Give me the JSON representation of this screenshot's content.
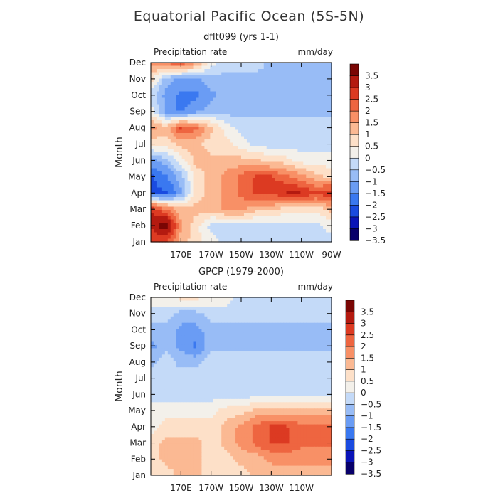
{
  "title": "Equatorial Pacific Ocean (5S-5N)",
  "colors": {
    "scale": [
      "#08006a",
      "#0a14b8",
      "#1a4be0",
      "#3a78f0",
      "#6a9cf4",
      "#98bcf6",
      "#c4daf8",
      "#f3f0ea",
      "#fde0c8",
      "#fbb993",
      "#f89066",
      "#ee6540",
      "#dc3a22",
      "#b41a10",
      "#7a0604"
    ]
  },
  "chart_data": [
    {
      "type": "heatmap",
      "title": "dflt099 (yrs 1-1)",
      "left_label": "Precipitation rate",
      "right_label": "mm/day",
      "ylabel": "Month",
      "y_categories": [
        "Jan",
        "Feb",
        "Mar",
        "Apr",
        "May",
        "Jun",
        "Jul",
        "Aug",
        "Sep",
        "Oct",
        "Nov",
        "Dec"
      ],
      "x_ticks": [
        "170E",
        "170W",
        "150W",
        "130W",
        "110W",
        "90W"
      ],
      "x_tick_lons": [
        170,
        190,
        210,
        230,
        250,
        270
      ],
      "xlim": [
        150,
        270
      ],
      "colorbar_labels": [
        "3.5",
        "3",
        "2.5",
        "2",
        "1.5",
        "1",
        "0.5",
        "0",
        "-0.5",
        "-1",
        "-1.5",
        "-2",
        "-2.5",
        "-3",
        "-3.5"
      ],
      "colorbar_range": [
        -4,
        4
      ],
      "lon_grid": [
        150,
        160,
        170,
        180,
        190,
        200,
        210,
        220,
        230,
        240,
        250,
        260,
        270
      ],
      "values": [
        [
          2.5,
          2.5,
          1.0,
          0.5,
          0.0,
          -0.5,
          -0.5,
          -0.5,
          -0.5,
          -0.5,
          -0.5,
          -0.5,
          -0.5
        ],
        [
          3.0,
          4.0,
          1.5,
          0.5,
          -0.5,
          -0.5,
          -0.5,
          -0.5,
          -0.5,
          -0.5,
          -0.5,
          -0.5,
          0.0
        ],
        [
          3.0,
          2.0,
          1.0,
          1.0,
          1.0,
          1.5,
          1.5,
          1.0,
          1.0,
          0.5,
          0.5,
          0.5,
          1.0
        ],
        [
          -2.5,
          -2.5,
          -1.5,
          0.5,
          1.0,
          1.5,
          2.0,
          2.5,
          2.5,
          3.0,
          3.0,
          2.5,
          3.0
        ],
        [
          -2.5,
          -2.0,
          -1.0,
          0.5,
          1.0,
          1.5,
          2.0,
          2.5,
          2.5,
          2.0,
          1.5,
          1.0,
          0.5
        ],
        [
          -1.5,
          -1.0,
          0.0,
          1.0,
          1.0,
          1.0,
          1.0,
          1.0,
          0.5,
          0.5,
          0.0,
          0.0,
          0.0
        ],
        [
          0.5,
          0.5,
          1.0,
          1.0,
          0.5,
          0.5,
          0.0,
          -0.5,
          -0.5,
          -0.5,
          -0.5,
          -0.5,
          -0.5
        ],
        [
          1.5,
          1.0,
          2.5,
          2.0,
          1.0,
          0.0,
          -0.5,
          -0.5,
          -0.5,
          -0.5,
          -0.5,
          -0.5,
          -0.5
        ],
        [
          0.0,
          -1.5,
          -2.0,
          -1.5,
          -1.0,
          -1.0,
          -1.0,
          -1.0,
          -1.0,
          -1.0,
          -1.0,
          -1.0,
          -1.0
        ],
        [
          -0.5,
          -1.5,
          -2.0,
          -2.0,
          -1.5,
          -1.0,
          -1.0,
          -1.0,
          -1.0,
          -1.0,
          -1.0,
          -1.0,
          -1.0
        ],
        [
          0.5,
          -1.0,
          -1.5,
          -1.5,
          -1.0,
          -1.0,
          -1.0,
          -1.0,
          -1.0,
          -1.0,
          -1.0,
          -1.0,
          -1.0
        ],
        [
          1.5,
          2.0,
          2.5,
          1.5,
          0.0,
          -0.5,
          -0.5,
          -0.5,
          -1.0,
          -1.0,
          -1.0,
          -1.0,
          -1.0
        ]
      ]
    },
    {
      "type": "heatmap",
      "title": "GPCP (1979-2000)",
      "left_label": "Precipitation rate",
      "right_label": "mm/day",
      "ylabel": "Month",
      "y_categories": [
        "Jan",
        "Feb",
        "Mar",
        "Apr",
        "May",
        "Jun",
        "Jul",
        "Aug",
        "Sep",
        "Oct",
        "Nov",
        "Dec"
      ],
      "x_ticks": [
        "170E",
        "170W",
        "150W",
        "130W",
        "110W"
      ],
      "x_tick_lons": [
        170,
        190,
        210,
        230,
        250
      ],
      "xlim": [
        150,
        270
      ],
      "colorbar_labels": [
        "3.5",
        "3",
        "2.5",
        "2",
        "1.5",
        "1",
        "0.5",
        "0",
        "-0.5",
        "-1",
        "-1.5",
        "-2",
        "-2.5",
        "-3",
        "-3.5"
      ],
      "colorbar_range": [
        -4,
        4
      ],
      "lon_grid": [
        150,
        160,
        170,
        180,
        190,
        200,
        210,
        220,
        230,
        240,
        250,
        260,
        270
      ],
      "values": [
        [
          0.5,
          0.5,
          1.0,
          1.0,
          0.5,
          0.5,
          0.5,
          1.0,
          1.0,
          1.0,
          1.0,
          1.0,
          1.0
        ],
        [
          0.5,
          1.0,
          1.0,
          1.0,
          0.5,
          0.5,
          1.0,
          1.0,
          1.5,
          1.5,
          1.5,
          1.5,
          1.5
        ],
        [
          0.5,
          1.0,
          1.0,
          1.0,
          0.5,
          1.0,
          1.5,
          2.0,
          2.5,
          2.5,
          2.0,
          2.0,
          2.0
        ],
        [
          0.0,
          0.5,
          0.5,
          0.5,
          0.5,
          1.0,
          1.5,
          2.0,
          2.5,
          2.5,
          2.0,
          2.0,
          2.0
        ],
        [
          0.0,
          0.0,
          0.0,
          0.0,
          0.0,
          0.5,
          0.5,
          1.0,
          1.0,
          1.0,
          1.0,
          1.0,
          1.0
        ],
        [
          -0.5,
          -0.5,
          -0.5,
          -0.5,
          -0.5,
          -0.5,
          -0.5,
          -0.5,
          -0.5,
          -0.5,
          -0.5,
          -0.5,
          -0.5
        ],
        [
          -0.5,
          -0.5,
          -0.5,
          -0.5,
          -0.5,
          -0.5,
          -0.5,
          -0.5,
          -0.5,
          -0.5,
          -0.5,
          -0.5,
          -0.5
        ],
        [
          -1.0,
          -0.5,
          -1.0,
          -1.0,
          -0.5,
          -0.5,
          -0.5,
          -0.5,
          -0.5,
          -0.5,
          -0.5,
          -0.5,
          -0.5
        ],
        [
          -1.5,
          -1.0,
          -1.5,
          -2.0,
          -1.0,
          -1.0,
          -1.0,
          -1.0,
          -1.0,
          -1.0,
          -1.0,
          -1.0,
          -1.0
        ],
        [
          -1.0,
          -1.0,
          -1.5,
          -1.5,
          -1.0,
          -1.0,
          -1.0,
          -1.0,
          -1.0,
          -1.0,
          -1.0,
          -1.0,
          -1.0
        ],
        [
          -0.5,
          -0.5,
          -1.0,
          -1.0,
          -0.5,
          -0.5,
          -0.5,
          -0.5,
          -0.5,
          -0.5,
          -0.5,
          -0.5,
          -0.5
        ],
        [
          0.0,
          0.0,
          0.5,
          0.5,
          0.0,
          0.0,
          -0.5,
          -0.5,
          -0.5,
          -0.5,
          -0.5,
          -0.5,
          -0.5
        ]
      ]
    }
  ]
}
